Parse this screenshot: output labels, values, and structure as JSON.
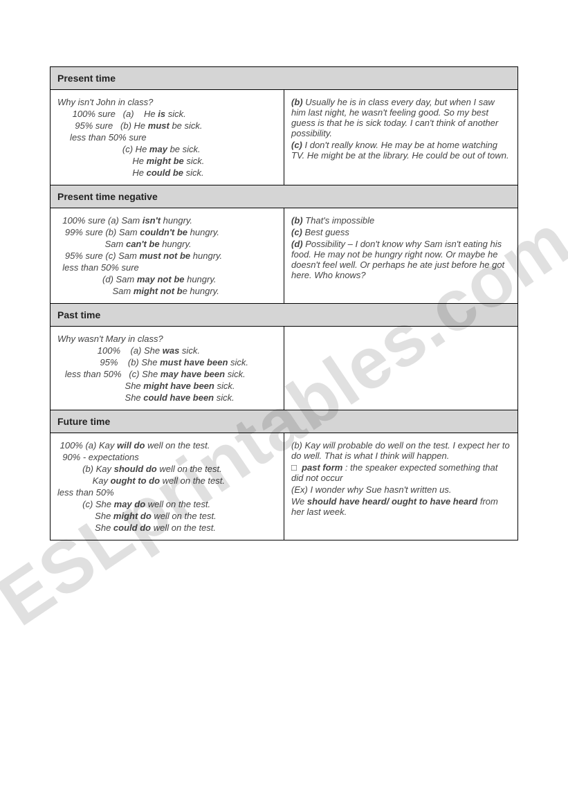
{
  "watermark": "ESLprintables.com",
  "sections": [
    {
      "title": "Present time",
      "left": {
        "lines": [
          {
            "cls": "ital line",
            "html": "Why isn't John in class?"
          },
          {
            "cls": "ital line",
            "html": "      100% sure   (a)    He <span class='bi'>is</span> sick."
          },
          {
            "cls": "ital line",
            "html": "       95% sure   (b) He <span class='bi'>must</span> be sick."
          },
          {
            "cls": "ital line",
            "html": "     less than 50% sure"
          },
          {
            "cls": "ital line",
            "html": "                          (c) He <span class='bi'>may</span> be sick."
          },
          {
            "cls": "ital line",
            "html": "                              He <span class='bi'>might be</span> sick."
          },
          {
            "cls": "ital line",
            "html": "                              He <span class='bi'>could be</span> sick."
          }
        ]
      },
      "right": {
        "lines": [
          {
            "cls": "ital linew",
            "html": "<span class='b'>(b)</span> Usually he is in class every day, but when I saw him last night, he wasn't feeling good. So my best guess is that he is sick today. I can't think of another possibility."
          },
          {
            "cls": "ital linew",
            "html": "<span class='b'>(c)</span> I don't really know. He may be at home watching TV. He might be at the library. He could be out of town."
          }
        ]
      }
    },
    {
      "title": "Present time negative",
      "left": {
        "lines": [
          {
            "cls": "ital line",
            "html": "  100% sure (a) Sam <span class='bi'>isn't</span> hungry."
          },
          {
            "cls": "ital line",
            "html": "   99% sure (b) Sam <span class='bi'>couldn't be</span> hungry."
          },
          {
            "cls": "ital line",
            "html": "                   Sam <span class='bi'>can't be</span> hungry."
          },
          {
            "cls": "ital line",
            "html": "   95% sure (c) Sam <span class='bi'>must not be</span> hungry."
          },
          {
            "cls": "ital line",
            "html": "  less than 50% sure"
          },
          {
            "cls": "ital line",
            "html": "                  (d) Sam <span class='bi'>may not be</span> hungry."
          },
          {
            "cls": "ital line",
            "html": "                      Sam <span class='bi'>might not b</span>e hungry."
          }
        ]
      },
      "right": {
        "lines": [
          {
            "cls": "ital linew",
            "html": "<span class='b'>(b)</span> That's impossible"
          },
          {
            "cls": "ital linew",
            "html": "<span class='b'>(c)</span> Best guess"
          },
          {
            "cls": "ital linew",
            "html": "<span class='b'>(d)</span> Possibility – I don't know why Sam isn't eating his food. He may not be hungry right now. Or maybe he doesn't feel well. Or perhaps he ate just before he got here. Who knows?"
          }
        ]
      }
    },
    {
      "title": "Past time",
      "left": {
        "lines": [
          {
            "cls": "ital line",
            "html": "Why wasn't Mary in class?"
          },
          {
            "cls": "ital line",
            "html": "                100%    (a) She <span class='bi'>was</span> sick."
          },
          {
            "cls": "ital line",
            "html": "                 95%    (b) She <span class='bi'>must have been</span> sick."
          },
          {
            "cls": "ital line",
            "html": "   less than 50%   (c) She <span class='bi'>may have been</span> sick."
          },
          {
            "cls": "ital line",
            "html": "                           She <span class='bi'>might have been</span> sick."
          },
          {
            "cls": "ital line",
            "html": "                           She <span class='bi'>could have been</span> sick."
          }
        ]
      },
      "right": {
        "lines": []
      }
    },
    {
      "title": "Future time",
      "left": {
        "lines": [
          {
            "cls": "ital line",
            "html": " 100% (a) Kay <span class='bi'>will do</span> well on the test."
          },
          {
            "cls": "ital line",
            "html": "  90% - expectations"
          },
          {
            "cls": "ital line",
            "html": "          (b) Kay <span class='bi'>should do</span> well on the test."
          },
          {
            "cls": "ital line",
            "html": "              Kay <span class='bi'>ought to do</span> well on the test."
          },
          {
            "cls": "ital line",
            "html": "less than 50%"
          },
          {
            "cls": "ital line",
            "html": "          (c) She <span class='bi'>may do</span> well on the test."
          },
          {
            "cls": "ital line",
            "html": "               She <span class='bi'>might do</span> well on the test."
          },
          {
            "cls": "ital line",
            "html": "               She <span class='bi'>could do</span> well on the test."
          }
        ]
      },
      "right": {
        "lines": [
          {
            "cls": "ital linew",
            "html": "(b) Kay will probable do well on the test. I expect her to do well. That is what I think will happen."
          },
          {
            "cls": "ital linew",
            "html": "&#9633;&nbsp; <span class='bi'>past form</span> : the speaker expected something that did not occur"
          },
          {
            "cls": "ital linew",
            "html": "(Ex) I wonder why Sue hasn't written us."
          },
          {
            "cls": "ital linew",
            "html": "We <span class='bi'>should have heard/ ought to have heard</span> from her last week."
          }
        ]
      }
    }
  ]
}
